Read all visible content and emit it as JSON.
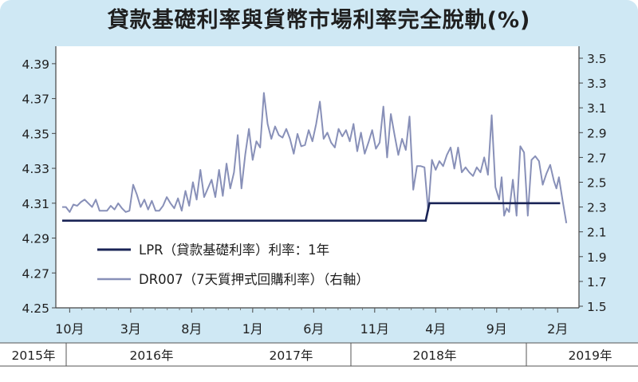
{
  "title": "貸款基礎利率與貨幣市場利率完全脫軌(%)",
  "chart_data": {
    "type": "line",
    "title": "貸款基礎利率與貨幣市場利率完全脫軌(%)",
    "left_axis": {
      "ticks": [
        "4.39",
        "4.37",
        "4.35",
        "4.33",
        "4.31",
        "4.29",
        "4.27",
        "4.25"
      ],
      "ylim": [
        4.25,
        4.4
      ]
    },
    "right_axis": {
      "ticks": [
        "3.5",
        "3.3",
        "3.1",
        "2.9",
        "2.7",
        "2.5",
        "2.3",
        "2.1",
        "1.9",
        "1.7",
        "1.5"
      ],
      "ylim": [
        1.5,
        3.5
      ]
    },
    "x_tick_labels": [
      "10月",
      "3月",
      "8月",
      "1月",
      "6月",
      "11月",
      "4月",
      "9月",
      "2月"
    ],
    "year_labels": [
      "2015年",
      "2016年",
      "2017年",
      "2018年",
      "2019年"
    ],
    "legend": [
      {
        "label": "LPR（貸款基礎利率）利率：1年",
        "color": "#1a2456"
      },
      {
        "label": "DR007（7天質押式回購利率）（右軸）",
        "color": "#8890b8"
      }
    ],
    "series": [
      {
        "name": "LPR（貸款基礎利率）利率：1年",
        "axis": "left",
        "points": [
          {
            "x": 0,
            "y": 4.3
          },
          {
            "x": 29.2,
            "y": 4.3
          },
          {
            "x": 29.5,
            "y": 4.31
          },
          {
            "x": 40,
            "y": 4.31
          }
        ]
      },
      {
        "name": "DR007（7天質押式回購利率）（右軸）",
        "axis": "right",
        "points": [
          [
            0.0,
            2.3
          ],
          [
            0.3,
            2.3
          ],
          [
            0.6,
            2.26
          ],
          [
            0.9,
            2.32
          ],
          [
            1.2,
            2.31
          ],
          [
            1.5,
            2.34
          ],
          [
            1.8,
            2.36
          ],
          [
            2.1,
            2.33
          ],
          [
            2.4,
            2.3
          ],
          [
            2.7,
            2.36
          ],
          [
            3.0,
            2.27
          ],
          [
            3.3,
            2.27
          ],
          [
            3.6,
            2.27
          ],
          [
            3.9,
            2.31
          ],
          [
            4.2,
            2.28
          ],
          [
            4.5,
            2.33
          ],
          [
            4.8,
            2.29
          ],
          [
            5.1,
            2.26
          ],
          [
            5.4,
            2.27
          ],
          [
            5.7,
            2.48
          ],
          [
            6.0,
            2.4
          ],
          [
            6.3,
            2.3
          ],
          [
            6.6,
            2.36
          ],
          [
            6.9,
            2.28
          ],
          [
            7.2,
            2.35
          ],
          [
            7.5,
            2.27
          ],
          [
            7.8,
            2.27
          ],
          [
            8.1,
            2.31
          ],
          [
            8.4,
            2.38
          ],
          [
            8.7,
            2.33
          ],
          [
            9.0,
            2.29
          ],
          [
            9.3,
            2.37
          ],
          [
            9.6,
            2.27
          ],
          [
            9.9,
            2.43
          ],
          [
            10.2,
            2.31
          ],
          [
            10.5,
            2.5
          ],
          [
            10.8,
            2.36
          ],
          [
            11.1,
            2.6
          ],
          [
            11.4,
            2.38
          ],
          [
            11.7,
            2.45
          ],
          [
            12.0,
            2.52
          ],
          [
            12.3,
            2.38
          ],
          [
            12.6,
            2.6
          ],
          [
            12.9,
            2.39
          ],
          [
            13.2,
            2.65
          ],
          [
            13.5,
            2.45
          ],
          [
            13.8,
            2.58
          ],
          [
            14.1,
            2.88
          ],
          [
            14.4,
            2.45
          ],
          [
            14.7,
            2.72
          ],
          [
            15.0,
            2.93
          ],
          [
            15.3,
            2.68
          ],
          [
            15.6,
            2.83
          ],
          [
            15.9,
            2.78
          ],
          [
            16.2,
            3.22
          ],
          [
            16.5,
            2.97
          ],
          [
            16.8,
            2.85
          ],
          [
            17.1,
            2.95
          ],
          [
            17.4,
            2.88
          ],
          [
            17.7,
            2.86
          ],
          [
            18.0,
            2.93
          ],
          [
            18.3,
            2.85
          ],
          [
            18.6,
            2.73
          ],
          [
            18.9,
            2.89
          ],
          [
            19.2,
            2.79
          ],
          [
            19.5,
            2.8
          ],
          [
            19.8,
            2.92
          ],
          [
            20.1,
            2.83
          ],
          [
            20.4,
            2.97
          ],
          [
            20.7,
            3.15
          ],
          [
            21.0,
            2.85
          ],
          [
            21.3,
            2.9
          ],
          [
            21.6,
            2.82
          ],
          [
            21.9,
            2.78
          ],
          [
            22.2,
            2.93
          ],
          [
            22.5,
            2.87
          ],
          [
            22.8,
            2.92
          ],
          [
            23.1,
            2.83
          ],
          [
            23.4,
            2.97
          ],
          [
            23.7,
            2.75
          ],
          [
            24.0,
            2.9
          ],
          [
            24.3,
            2.73
          ],
          [
            24.6,
            2.82
          ],
          [
            24.9,
            2.92
          ],
          [
            25.2,
            2.77
          ],
          [
            25.5,
            2.82
          ],
          [
            25.8,
            3.11
          ],
          [
            26.1,
            2.7
          ],
          [
            26.4,
            3.05
          ],
          [
            26.7,
            2.88
          ],
          [
            27.0,
            2.72
          ],
          [
            27.3,
            2.85
          ],
          [
            27.6,
            2.76
          ],
          [
            27.9,
            3.03
          ],
          [
            28.2,
            2.44
          ],
          [
            28.5,
            2.63
          ],
          [
            28.8,
            2.63
          ],
          [
            29.1,
            2.62
          ],
          [
            29.4,
            2.27
          ],
          [
            29.7,
            2.68
          ],
          [
            30.0,
            2.6
          ],
          [
            30.3,
            2.67
          ],
          [
            30.6,
            2.63
          ],
          [
            30.9,
            2.72
          ],
          [
            31.2,
            2.78
          ],
          [
            31.5,
            2.61
          ],
          [
            31.8,
            2.78
          ],
          [
            32.1,
            2.58
          ],
          [
            32.4,
            2.62
          ],
          [
            32.7,
            2.58
          ],
          [
            33.0,
            2.55
          ],
          [
            33.3,
            2.62
          ],
          [
            33.6,
            2.58
          ],
          [
            33.9,
            2.7
          ],
          [
            34.2,
            2.56
          ],
          [
            34.5,
            3.04
          ],
          [
            34.8,
            2.46
          ],
          [
            35.1,
            2.36
          ],
          [
            35.3,
            2.54
          ],
          [
            35.5,
            2.23
          ],
          [
            35.7,
            2.29
          ],
          [
            35.9,
            2.26
          ],
          [
            36.2,
            2.52
          ],
          [
            36.5,
            2.23
          ],
          [
            36.8,
            2.79
          ],
          [
            37.1,
            2.74
          ],
          [
            37.4,
            2.23
          ],
          [
            37.7,
            2.68
          ],
          [
            38.0,
            2.71
          ],
          [
            38.3,
            2.67
          ],
          [
            38.6,
            2.48
          ],
          [
            38.9,
            2.57
          ],
          [
            39.2,
            2.64
          ],
          [
            39.5,
            2.51
          ],
          [
            39.7,
            2.45
          ],
          [
            39.9,
            2.54
          ],
          [
            40.2,
            2.35
          ],
          [
            40.5,
            2.17
          ]
        ]
      }
    ],
    "grid": true
  }
}
